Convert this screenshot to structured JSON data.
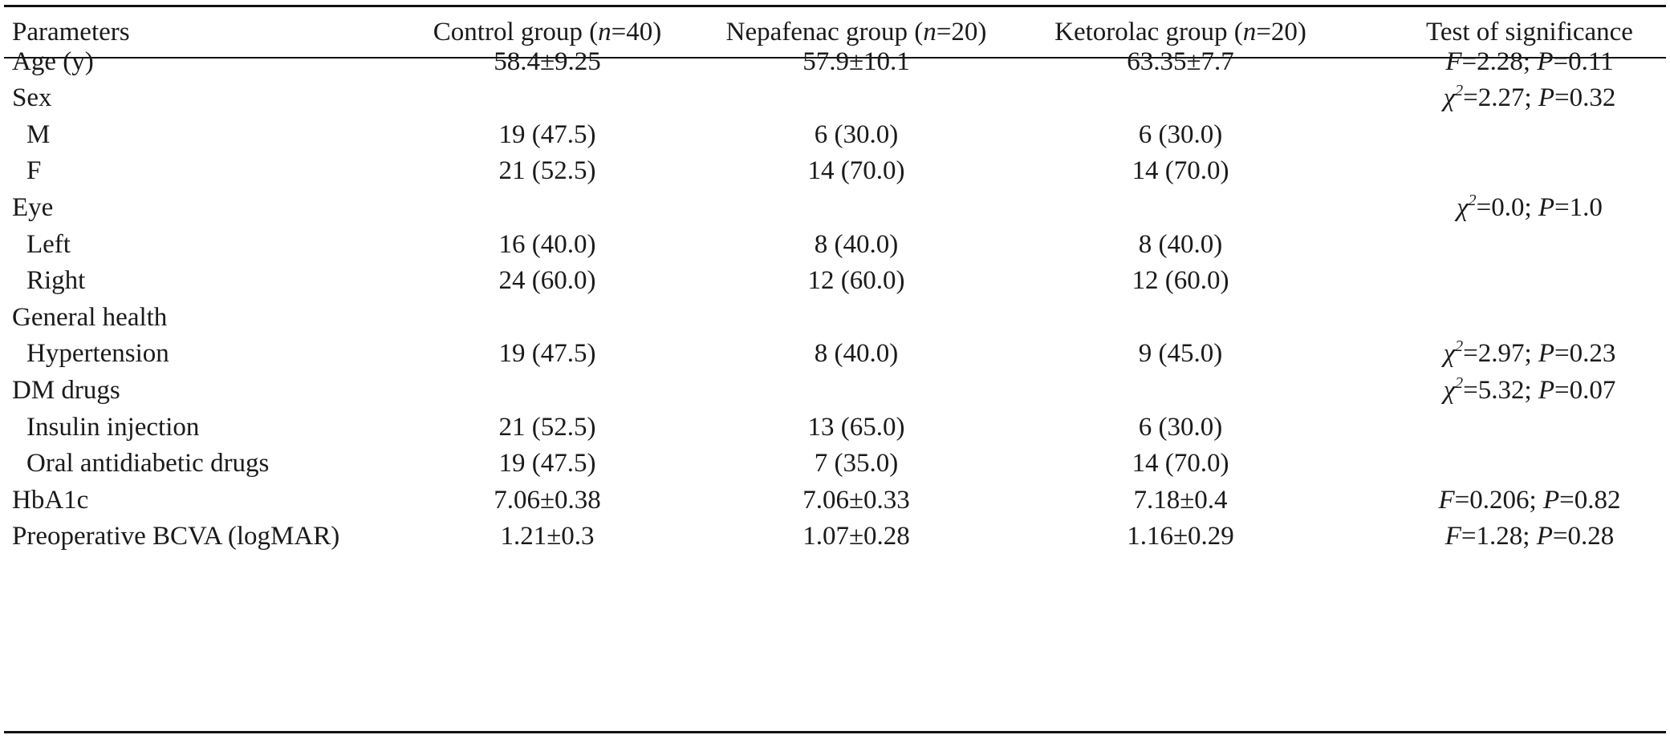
{
  "table": {
    "header": {
      "parameters": "Parameters",
      "control": "Control group (n=40)",
      "nepafenac": "Nepafenac group (n=20)",
      "ketorolac": "Ketorolac group (n=20)",
      "test": "Test of significance"
    },
    "rows": [
      {
        "label": "Age (y)",
        "control": "58.4±9.25",
        "nepafenac": "57.9±10.1",
        "ketorolac": "63.35±7.7",
        "test": "F=2.28; P=0.11"
      },
      {
        "label": "Sex",
        "control": "",
        "nepafenac": "",
        "ketorolac": "",
        "test": "χ2=2.27; P=0.32"
      },
      {
        "label": "M",
        "control": "19 (47.5)",
        "nepafenac": "6 (30.0)",
        "ketorolac": "6 (30.0)",
        "test": ""
      },
      {
        "label": "F",
        "control": "21 (52.5)",
        "nepafenac": "14 (70.0)",
        "ketorolac": "14 (70.0)",
        "test": ""
      },
      {
        "label": "Eye",
        "control": "",
        "nepafenac": "",
        "ketorolac": "",
        "test": "χ2=0.0; P=1.0"
      },
      {
        "label": "Left",
        "control": "16 (40.0)",
        "nepafenac": "8 (40.0)",
        "ketorolac": "8 (40.0)",
        "test": ""
      },
      {
        "label": "Right",
        "control": "24 (60.0)",
        "nepafenac": "12 (60.0)",
        "ketorolac": "12 (60.0)",
        "test": ""
      },
      {
        "label": "General health",
        "control": "",
        "nepafenac": "",
        "ketorolac": "",
        "test": ""
      },
      {
        "label": "Hypertension",
        "control": "19 (47.5)",
        "nepafenac": "8 (40.0)",
        "ketorolac": "9 (45.0)",
        "test": "χ2=2.97; P=0.23"
      },
      {
        "label": "DM drugs",
        "control": "",
        "nepafenac": "",
        "ketorolac": "",
        "test": "χ2=5.32; P=0.07"
      },
      {
        "label": "Insulin injection",
        "control": "21 (52.5)",
        "nepafenac": "13 (65.0)",
        "ketorolac": "6 (30.0)",
        "test": ""
      },
      {
        "label": "Oral antidiabetic drugs",
        "control": "19 (47.5)",
        "nepafenac": "7 (35.0)",
        "ketorolac": "14 (70.0)",
        "test": ""
      },
      {
        "label": "HbA1c",
        "control": "7.06±0.38",
        "nepafenac": "7.06±0.33",
        "ketorolac": "7.18±0.4",
        "test": "F=0.206; P=0.82"
      },
      {
        "label": "Preoperative BCVA (logMAR)",
        "control": "1.21±0.3",
        "nepafenac": "1.07±0.28",
        "ketorolac": "1.16±0.29",
        "test": "F=1.28; P=0.28"
      }
    ]
  }
}
